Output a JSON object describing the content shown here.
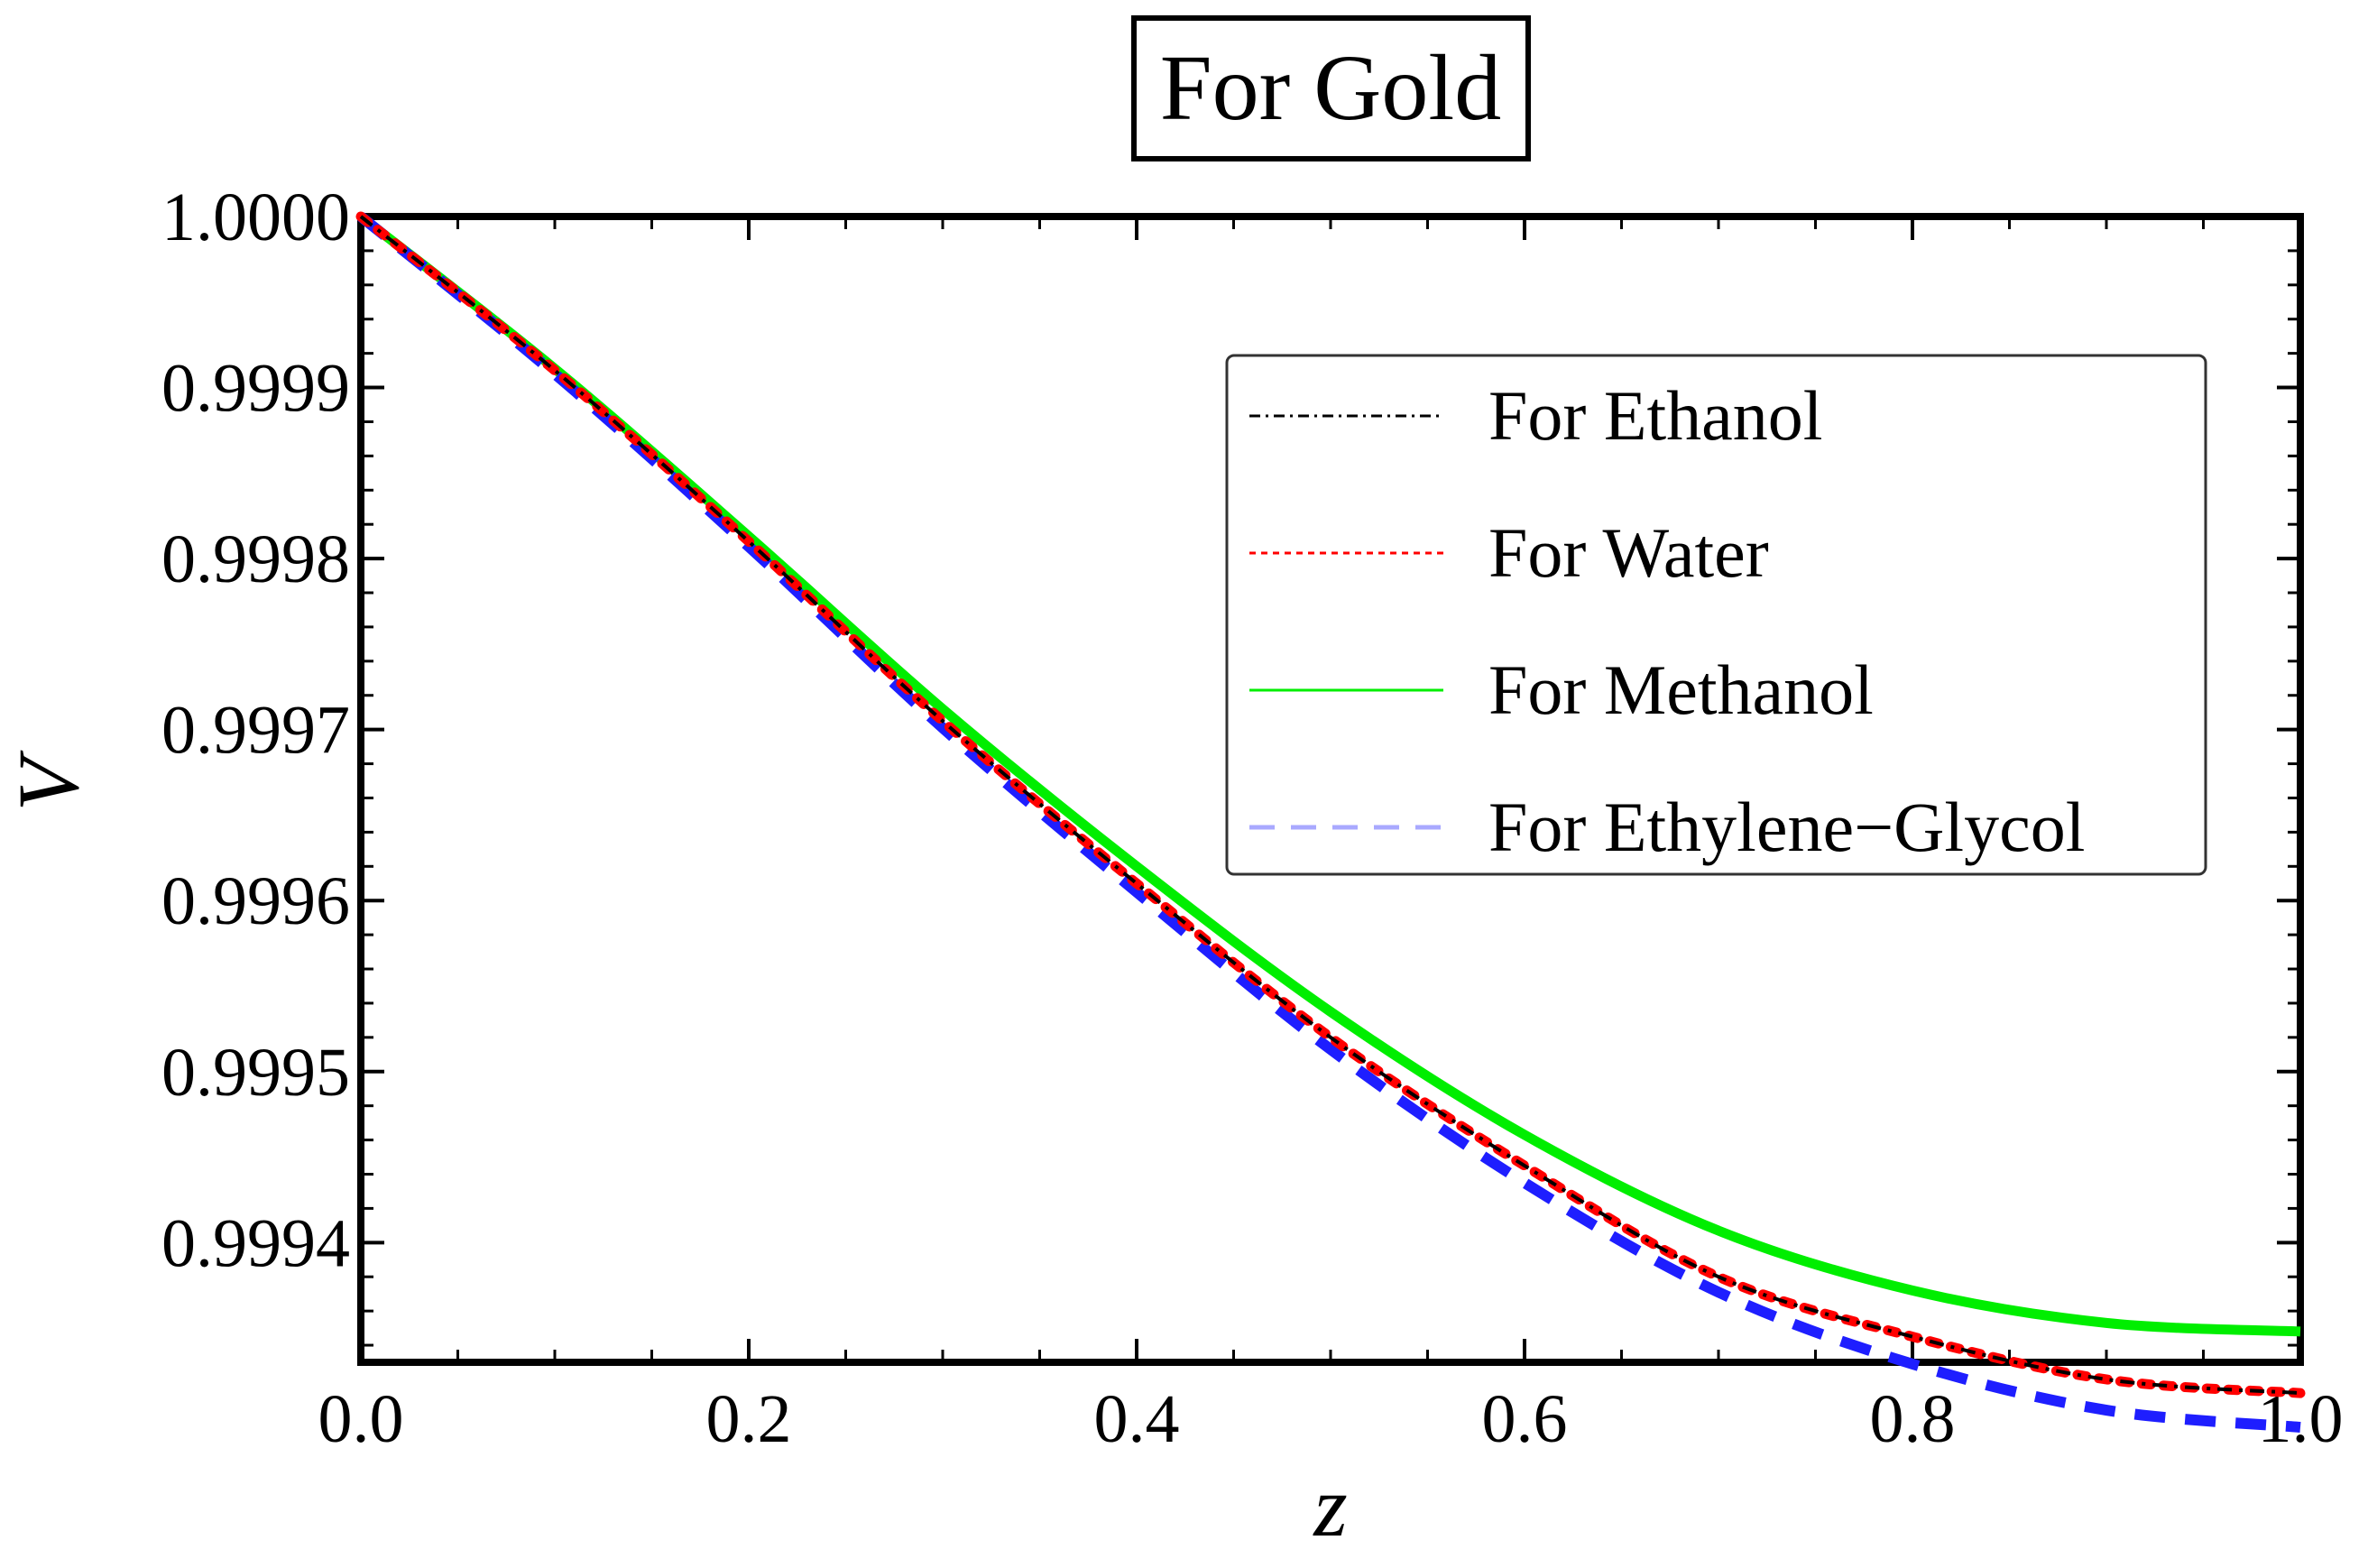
{
  "chart_data": {
    "type": "line",
    "title": "For Gold",
    "xlabel": "z",
    "ylabel": "V",
    "xlim": [
      0.0,
      1.0
    ],
    "ylim": [
      0.99933,
      1.0
    ],
    "x_ticks": [
      "0.0",
      "0.2",
      "0.4",
      "0.6",
      "0.8",
      "1.0"
    ],
    "x_tick_values": [
      0.0,
      0.2,
      0.4,
      0.6,
      0.8,
      1.0
    ],
    "y_ticks": [
      "1.0000",
      "0.9999",
      "0.9998",
      "0.9997",
      "0.9996",
      "0.9995",
      "0.9994"
    ],
    "y_tick_values": [
      1.0,
      0.9999,
      0.9998,
      0.9997,
      0.9996,
      0.9995,
      0.9994
    ],
    "grid": false,
    "legend_position": "upper-right",
    "x": [
      0.0,
      0.1,
      0.2,
      0.3,
      0.4,
      0.5,
      0.6,
      0.7,
      0.8,
      0.9,
      1.0
    ],
    "series": [
      {
        "name": "For Ethanol",
        "style": "dot-dash",
        "color": "#000000",
        "values": [
          1.0,
          0.99991,
          0.99981,
          0.999705,
          0.99961,
          0.99952,
          0.999445,
          0.99938,
          0.999345,
          0.99932,
          0.999312
        ]
      },
      {
        "name": "For Water",
        "style": "dotted",
        "color": "#ff0000",
        "values": [
          1.0,
          0.99991,
          0.99981,
          0.999705,
          0.99961,
          0.99952,
          0.999445,
          0.99938,
          0.999345,
          0.99932,
          0.999312
        ]
      },
      {
        "name": "For Methanol",
        "style": "solid",
        "color": "#00ee00",
        "values": [
          1.0,
          0.999911,
          0.999813,
          0.999712,
          0.99962,
          0.999535,
          0.999463,
          0.999407,
          0.999372,
          0.999353,
          0.999348
        ]
      },
      {
        "name": "For Ethylene−Glycol",
        "style": "dashed",
        "color": "#1e1eff",
        "legend_color": "#a9a9ff",
        "values": [
          1.0,
          0.999908,
          0.999807,
          0.999701,
          0.999605,
          0.999513,
          0.999435,
          0.999371,
          0.999329,
          0.999302,
          0.999292
        ]
      }
    ]
  }
}
